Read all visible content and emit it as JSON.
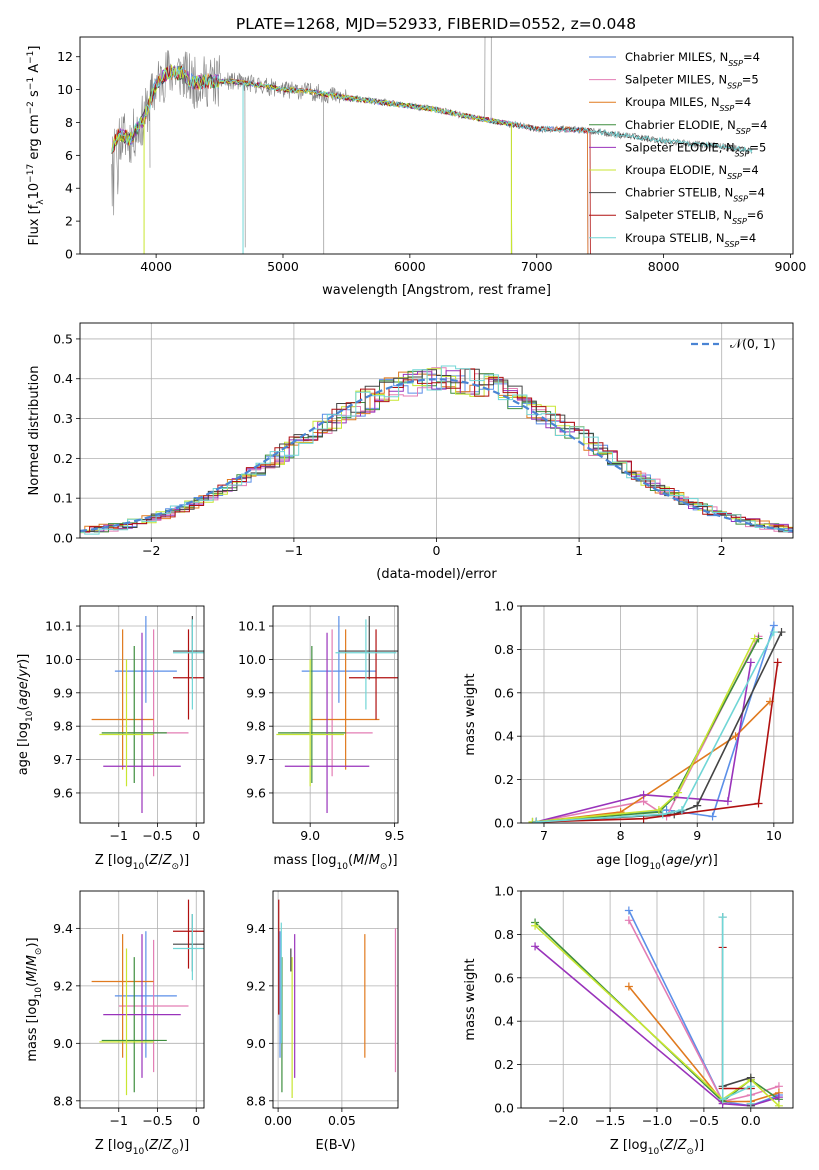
{
  "title": "PLATE=1268, MJD=52933, FIBERID=0552, z=0.048",
  "colors": {
    "chabrier_miles": "#5b8fe8",
    "salpeter_miles": "#e37db4",
    "kroupa_miles": "#e07a1f",
    "chabrier_elodie": "#3e8e3e",
    "salpeter_elodie": "#9933bb",
    "kroupa_elodie": "#c8e632",
    "chabrier_stelib": "#444444",
    "salpeter_stelib": "#b01010",
    "kroupa_stelib": "#70d6d6",
    "data": "#808080",
    "gaussian": "#4a84d4"
  },
  "chart_data": [
    {
      "id": "spectrum",
      "type": "line",
      "xlabel": "wavelength [Angstrom, rest frame]",
      "ylabel": "Flux [f_λ10^-17 erg cm^-2 s^-1 A^-1]",
      "xlim": [
        3400,
        9020
      ],
      "ylim": [
        0,
        13.2
      ],
      "xticks": [
        4000,
        5000,
        6000,
        7000,
        8000,
        9000
      ],
      "yticks": [
        0,
        2,
        4,
        6,
        8,
        10,
        12
      ],
      "legend_position": "top-right",
      "legend": [
        {
          "key": "chabrier_miles",
          "label": "Chabrier MILES, N",
          "sub": "SSP",
          "suffix": "=4"
        },
        {
          "key": "salpeter_miles",
          "label": "Salpeter MILES, N",
          "sub": "SSP",
          "suffix": "=5"
        },
        {
          "key": "kroupa_miles",
          "label": "Kroupa MILES, N",
          "sub": "SSP",
          "suffix": "=4"
        },
        {
          "key": "chabrier_elodie",
          "label": "Chabrier ELODIE, N",
          "sub": "SSP",
          "suffix": "=4"
        },
        {
          "key": "salpeter_elodie",
          "label": "Salpeter ELODIE, N",
          "sub": "SSP",
          "suffix": "=5"
        },
        {
          "key": "kroupa_elodie",
          "label": "Kroupa ELODIE, N",
          "sub": "SSP",
          "suffix": "=4"
        },
        {
          "key": "chabrier_stelib",
          "label": "Chabrier STELIB, N",
          "sub": "SSP",
          "suffix": "=4"
        },
        {
          "key": "salpeter_stelib",
          "label": "Salpeter STELIB, N",
          "sub": "SSP",
          "suffix": "=6"
        },
        {
          "key": "kroupa_stelib",
          "label": "Kroupa STELIB, N",
          "sub": "SSP",
          "suffix": "=4"
        }
      ],
      "continuum": {
        "x": [
          3650,
          3700,
          3800,
          3900,
          4000,
          4100,
          4200,
          4300,
          4400,
          4600,
          4800,
          5000,
          5200,
          5500,
          5800,
          6000,
          6200,
          6500,
          6800,
          7000,
          7200,
          7400,
          7600,
          7800,
          8000,
          8200,
          8400,
          8700
        ],
        "y": [
          6.3,
          7.3,
          7.0,
          8.2,
          10.3,
          11.1,
          11.0,
          10.4,
          10.5,
          10.5,
          10.3,
          10.0,
          9.9,
          9.5,
          9.2,
          9.0,
          8.8,
          8.3,
          7.9,
          7.6,
          7.6,
          7.5,
          7.3,
          7.1,
          6.9,
          6.7,
          6.6,
          6.3
        ]
      }
    },
    {
      "id": "residuals",
      "type": "histogram",
      "xlabel": "(data-model)/error",
      "ylabel": "Normed distribution",
      "xlim": [
        -2.5,
        2.5
      ],
      "ylim": [
        0,
        0.54
      ],
      "xticks": [
        -2,
        -1,
        0,
        1,
        2
      ],
      "yticks": [
        0.0,
        0.1,
        0.2,
        0.3,
        0.4,
        0.5
      ],
      "legend_label": "N(0, 1)",
      "legend_position": "top-right"
    },
    {
      "id": "age_vs_Z",
      "type": "errorbar",
      "xlabel": "Z [log10(Z/Z_sun)]",
      "ylabel": "age  [log10(age/yr)]",
      "xlim": [
        -1.5,
        0.1
      ],
      "ylim": [
        9.51,
        10.16
      ],
      "xticks": [
        -1,
        -0.5,
        0
      ],
      "yticks": [
        9.6,
        9.7,
        9.8,
        9.9,
        10.0,
        10.1
      ],
      "points": [
        {
          "key": "chabrier_miles",
          "x": -0.65,
          "y": 9.965,
          "xerr": 0.4,
          "ylo": 9.87,
          "yhi": 10.13
        },
        {
          "key": "salpeter_miles",
          "x": -0.55,
          "y": 9.78,
          "xerr": 0.45,
          "ylo": 9.65,
          "yhi": 10.09
        },
        {
          "key": "kroupa_miles",
          "x": -0.95,
          "y": 9.82,
          "xerr": 0.4,
          "ylo": 9.67,
          "yhi": 10.09
        },
        {
          "key": "chabrier_elodie",
          "x": -0.8,
          "y": 9.78,
          "xerr": 0.42,
          "ylo": 9.63,
          "yhi": 10.04
        },
        {
          "key": "salpeter_elodie",
          "x": -0.7,
          "y": 9.68,
          "xerr": 0.5,
          "ylo": 9.54,
          "yhi": 10.08
        },
        {
          "key": "kroupa_elodie",
          "x": -0.9,
          "y": 9.775,
          "xerr": 0.35,
          "ylo": 9.62,
          "yhi": 10.0
        },
        {
          "key": "chabrier_stelib",
          "x": -0.05,
          "y": 10.025,
          "xerr": 0.25,
          "ylo": 9.94,
          "yhi": 10.13
        },
        {
          "key": "salpeter_stelib",
          "x": -0.1,
          "y": 9.945,
          "xerr": 0.2,
          "ylo": 9.82,
          "yhi": 10.09
        },
        {
          "key": "kroupa_stelib",
          "x": -0.05,
          "y": 10.02,
          "xerr": 0.25,
          "ylo": 9.85,
          "yhi": 10.12
        }
      ]
    },
    {
      "id": "age_vs_mass",
      "type": "errorbar",
      "xlabel": "mass [log10(M/M_sun)]",
      "ylabel": "",
      "xlim": [
        8.78,
        9.52
      ],
      "ylim": [
        9.51,
        10.16
      ],
      "xticks": [
        9.0,
        9.5
      ],
      "yticks": [
        9.6,
        9.7,
        9.8,
        9.9,
        10.0,
        10.1
      ],
      "points": [
        {
          "key": "chabrier_miles",
          "x": 9.17,
          "y": 9.965,
          "xerr": 0.22,
          "ylo": 9.87,
          "yhi": 10.13
        },
        {
          "key": "salpeter_miles",
          "x": 9.13,
          "y": 9.78,
          "xerr": 0.24,
          "ylo": 9.65,
          "yhi": 10.09
        },
        {
          "key": "kroupa_miles",
          "x": 9.21,
          "y": 9.82,
          "xerr": 0.2,
          "ylo": 9.67,
          "yhi": 10.09
        },
        {
          "key": "chabrier_elodie",
          "x": 9.01,
          "y": 9.78,
          "xerr": 0.2,
          "ylo": 9.63,
          "yhi": 10.04
        },
        {
          "key": "salpeter_elodie",
          "x": 9.1,
          "y": 9.68,
          "xerr": 0.25,
          "ylo": 9.54,
          "yhi": 10.08
        },
        {
          "key": "kroupa_elodie",
          "x": 9.0,
          "y": 9.775,
          "xerr": 0.2,
          "ylo": 9.62,
          "yhi": 10.0
        },
        {
          "key": "chabrier_stelib",
          "x": 9.35,
          "y": 10.025,
          "xerr": 0.18,
          "ylo": 9.94,
          "yhi": 10.13
        },
        {
          "key": "salpeter_stelib",
          "x": 9.39,
          "y": 9.945,
          "xerr": 0.16,
          "ylo": 9.82,
          "yhi": 10.09
        },
        {
          "key": "kroupa_stelib",
          "x": 9.33,
          "y": 10.02,
          "xerr": 0.18,
          "ylo": 9.85,
          "yhi": 10.12
        }
      ]
    },
    {
      "id": "mass_weight_vs_age",
      "type": "line",
      "xlabel": "age  [log10(age/yr)]",
      "ylabel": "mass weight",
      "xlim": [
        6.7,
        10.25
      ],
      "ylim": [
        0,
        1.0
      ],
      "xticks": [
        7,
        8,
        9,
        10
      ],
      "yticks": [
        0.0,
        0.2,
        0.4,
        0.6,
        0.8,
        1.0
      ],
      "series": [
        {
          "key": "chabrier_miles",
          "x": [
            6.9,
            8.6,
            9.2,
            10.0
          ],
          "y": [
            0.005,
            0.06,
            0.03,
            0.91
          ]
        },
        {
          "key": "salpeter_miles",
          "x": [
            6.9,
            8.3,
            8.6,
            9.8
          ],
          "y": [
            0.005,
            0.1,
            0.03,
            0.86
          ]
        },
        {
          "key": "kroupa_miles",
          "x": [
            6.9,
            8.0,
            9.5,
            9.95
          ],
          "y": [
            0.005,
            0.05,
            0.4,
            0.56
          ]
        },
        {
          "key": "chabrier_elodie",
          "x": [
            6.85,
            8.5,
            8.7,
            9.8
          ],
          "y": [
            0.005,
            0.05,
            0.12,
            0.85
          ]
        },
        {
          "key": "salpeter_elodie",
          "x": [
            6.9,
            8.3,
            9.4,
            9.7
          ],
          "y": [
            0.005,
            0.13,
            0.1,
            0.74
          ]
        },
        {
          "key": "kroupa_elodie",
          "x": [
            6.85,
            8.5,
            8.75,
            9.75
          ],
          "y": [
            0.005,
            0.06,
            0.14,
            0.85
          ]
        },
        {
          "key": "chabrier_stelib",
          "x": [
            6.9,
            8.7,
            9.0,
            10.1
          ],
          "y": [
            0.005,
            0.04,
            0.08,
            0.88
          ]
        },
        {
          "key": "salpeter_stelib",
          "x": [
            6.9,
            8.3,
            9.8,
            10.05
          ],
          "y": [
            0.005,
            0.02,
            0.09,
            0.74
          ]
        },
        {
          "key": "kroupa_stelib",
          "x": [
            6.9,
            8.55,
            8.8,
            10.0
          ],
          "y": [
            0.005,
            0.04,
            0.06,
            0.88
          ]
        }
      ]
    },
    {
      "id": "mass_vs_Z",
      "type": "errorbar",
      "xlabel": "Z [log10(Z/Z_sun)]",
      "ylabel": "mass [log10(M/M_sun)]",
      "xlim": [
        -1.5,
        0.1
      ],
      "ylim": [
        8.775,
        9.53
      ],
      "xticks": [
        -1,
        -0.5,
        0
      ],
      "yticks": [
        8.8,
        9.0,
        9.2,
        9.4
      ],
      "points": [
        {
          "key": "chabrier_miles",
          "x": -0.65,
          "y": 9.165,
          "xerr": 0.4,
          "ylo": 8.95,
          "yhi": 9.39
        },
        {
          "key": "salpeter_miles",
          "x": -0.55,
          "y": 9.13,
          "xerr": 0.45,
          "ylo": 8.9,
          "yhi": 9.36
        },
        {
          "key": "kroupa_miles",
          "x": -0.95,
          "y": 9.215,
          "xerr": 0.4,
          "ylo": 8.95,
          "yhi": 9.38
        },
        {
          "key": "chabrier_elodie",
          "x": -0.8,
          "y": 9.01,
          "xerr": 0.42,
          "ylo": 8.83,
          "yhi": 9.3
        },
        {
          "key": "salpeter_elodie",
          "x": -0.7,
          "y": 9.1,
          "xerr": 0.5,
          "ylo": 8.88,
          "yhi": 9.38
        },
        {
          "key": "kroupa_elodie",
          "x": -0.9,
          "y": 9.005,
          "xerr": 0.35,
          "ylo": 8.82,
          "yhi": 9.33
        },
        {
          "key": "chabrier_stelib",
          "x": -0.05,
          "y": 9.345,
          "xerr": 0.25,
          "ylo": 9.25,
          "yhi": 9.45
        },
        {
          "key": "salpeter_stelib",
          "x": -0.1,
          "y": 9.39,
          "xerr": 0.2,
          "ylo": 9.26,
          "yhi": 9.5
        },
        {
          "key": "kroupa_stelib",
          "x": -0.05,
          "y": 9.33,
          "xerr": 0.25,
          "ylo": 9.22,
          "yhi": 9.45
        }
      ]
    },
    {
      "id": "mass_vs_ebv",
      "type": "errorbar",
      "xlabel": "E(B-V)",
      "ylabel": "",
      "xlim": [
        -0.004,
        0.094
      ],
      "ylim": [
        8.775,
        9.53
      ],
      "xticks": [
        0.0,
        0.05
      ],
      "yticks": [
        8.8,
        9.0,
        9.2,
        9.4
      ],
      "points": [
        {
          "key": "chabrier_miles",
          "x": 0.0015,
          "y": 9.165,
          "xerr": 0,
          "ylo": 8.95,
          "yhi": 9.39
        },
        {
          "key": "salpeter_miles",
          "x": 0.092,
          "y": 9.13,
          "xerr": 0,
          "ylo": 8.9,
          "yhi": 9.4
        },
        {
          "key": "kroupa_miles",
          "x": 0.068,
          "y": 9.215,
          "xerr": 0,
          "ylo": 8.95,
          "yhi": 9.38
        },
        {
          "key": "chabrier_elodie",
          "x": 0.003,
          "y": 9.01,
          "xerr": 0,
          "ylo": 8.83,
          "yhi": 9.3
        },
        {
          "key": "salpeter_elodie",
          "x": 0.013,
          "y": 9.1,
          "xerr": 0,
          "ylo": 8.88,
          "yhi": 9.38
        },
        {
          "key": "kroupa_elodie",
          "x": 0.011,
          "y": 9.005,
          "xerr": 0,
          "ylo": 8.81,
          "yhi": 9.3
        },
        {
          "key": "chabrier_stelib",
          "x": 0.01,
          "y": 9.345,
          "xerr": 0,
          "ylo": 9.25,
          "yhi": 9.33
        },
        {
          "key": "salpeter_stelib",
          "x": 0.0005,
          "y": 9.39,
          "xerr": 0,
          "ylo": 9.1,
          "yhi": 9.5
        },
        {
          "key": "kroupa_stelib",
          "x": 0.0025,
          "y": 9.33,
          "xerr": 0,
          "ylo": 9.0,
          "yhi": 9.42
        }
      ]
    },
    {
      "id": "mass_weight_vs_Z",
      "type": "line",
      "xlabel": "Z [log10(Z/Z_sun)]",
      "ylabel": "mass weight",
      "xlim": [
        -2.45,
        0.45
      ],
      "ylim": [
        0,
        1.0
      ],
      "xticks": [
        -2.0,
        -1.5,
        -1.0,
        -0.5,
        0.0
      ],
      "yticks": [
        0.0,
        0.2,
        0.4,
        0.6,
        0.8,
        1.0
      ],
      "series": [
        {
          "key": "chabrier_miles",
          "x": [
            -1.3,
            -0.3,
            0.0,
            0.3
          ],
          "y": [
            0.91,
            0.03,
            0.01,
            0.06
          ]
        },
        {
          "key": "salpeter_miles",
          "x": [
            -1.3,
            -0.3,
            0.0,
            0.3
          ],
          "y": [
            0.865,
            0.03,
            0.06,
            0.1
          ]
        },
        {
          "key": "kroupa_miles",
          "x": [
            -1.3,
            -0.3,
            0.0,
            0.3
          ],
          "y": [
            0.56,
            0.03,
            0.03,
            0.07
          ]
        },
        {
          "key": "chabrier_elodie",
          "x": [
            -2.3,
            -0.3,
            0.0,
            0.3
          ],
          "y": [
            0.855,
            0.03,
            0.13,
            0.04
          ]
        },
        {
          "key": "salpeter_elodie",
          "x": [
            -2.3,
            -0.3,
            0.0,
            0.3
          ],
          "y": [
            0.745,
            0.02,
            0.01,
            0.05
          ]
        },
        {
          "key": "kroupa_elodie",
          "x": [
            -2.3,
            -0.3,
            0.0,
            0.3
          ],
          "y": [
            0.84,
            0.04,
            0.13,
            0.01
          ]
        },
        {
          "key": "chabrier_stelib",
          "x": [
            -0.3,
            -0.3,
            0.0,
            0.0
          ],
          "y": [
            0.88,
            0.1,
            0.14,
            0.01
          ]
        },
        {
          "key": "salpeter_stelib",
          "x": [
            -0.3,
            -0.3,
            0.0,
            0.0
          ],
          "y": [
            0.74,
            0.09,
            0.09,
            0.02
          ]
        },
        {
          "key": "kroupa_stelib",
          "x": [
            -0.3,
            -0.3,
            0.0,
            0.0
          ],
          "y": [
            0.88,
            0.04,
            0.1,
            0.02
          ]
        }
      ]
    }
  ]
}
